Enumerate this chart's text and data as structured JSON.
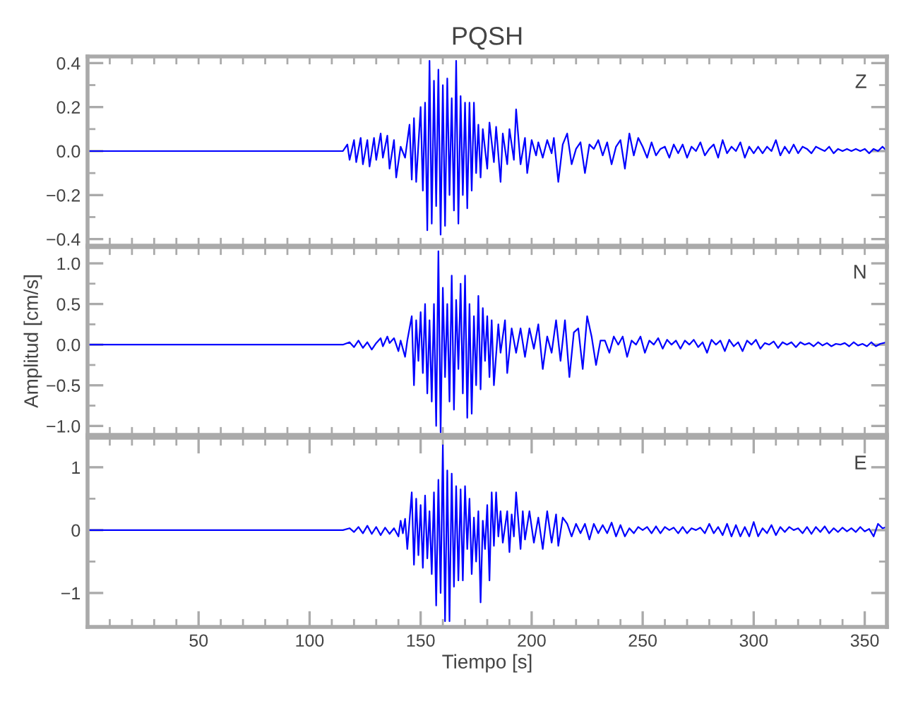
{
  "chart_data": [
    {
      "type": "line",
      "title": "PQSH",
      "annotations": [
        "Z"
      ],
      "tick_labels": "y",
      "grid": false,
      "legend": false,
      "xlim": [
        0,
        360
      ],
      "xticks": [
        {
          "value": 10,
          "label": null
        },
        {
          "value": 20,
          "label": null
        },
        {
          "value": 30,
          "label": null
        },
        {
          "value": 40,
          "label": null
        },
        {
          "value": 50,
          "label": null
        },
        {
          "value": 60,
          "label": null
        },
        {
          "value": 70,
          "label": null
        },
        {
          "value": 80,
          "label": null
        },
        {
          "value": 90,
          "label": null
        },
        {
          "value": 100,
          "label": null
        },
        {
          "value": 110,
          "label": null
        },
        {
          "value": 120,
          "label": null
        },
        {
          "value": 130,
          "label": null
        },
        {
          "value": 140,
          "label": null
        },
        {
          "value": 150,
          "label": null
        },
        {
          "value": 160,
          "label": null
        },
        {
          "value": 170,
          "label": null
        },
        {
          "value": 180,
          "label": null
        },
        {
          "value": 190,
          "label": null
        },
        {
          "value": 200,
          "label": null
        },
        {
          "value": 210,
          "label": null
        },
        {
          "value": 220,
          "label": null
        },
        {
          "value": 230,
          "label": null
        },
        {
          "value": 240,
          "label": null
        },
        {
          "value": 250,
          "label": null
        },
        {
          "value": 260,
          "label": null
        },
        {
          "value": 270,
          "label": null
        },
        {
          "value": 280,
          "label": null
        },
        {
          "value": 290,
          "label": null
        },
        {
          "value": 300,
          "label": null
        },
        {
          "value": 310,
          "label": null
        },
        {
          "value": 320,
          "label": null
        },
        {
          "value": 330,
          "label": null
        },
        {
          "value": 340,
          "label": null
        },
        {
          "value": 350,
          "label": null
        }
      ],
      "ylim": [
        -0.43,
        0.43
      ],
      "yticks": [
        {
          "value": -0.4,
          "label": "−0.4"
        },
        {
          "value": -0.3,
          "label": null
        },
        {
          "value": -0.2,
          "label": "−0.2"
        },
        {
          "value": -0.1,
          "label": null
        },
        {
          "value": 0,
          "label": "0.0"
        },
        {
          "value": 0.1,
          "label": null
        },
        {
          "value": 0.2,
          "label": "0.2"
        },
        {
          "value": 0.3,
          "label": null
        },
        {
          "value": 0.4,
          "label": "0.4"
        }
      ],
      "x": [
        0,
        115,
        117,
        118,
        120,
        121,
        123,
        124,
        126,
        127,
        129,
        130,
        132,
        133,
        135,
        136,
        138,
        139,
        141,
        143,
        145,
        146,
        147,
        148,
        150,
        151,
        152,
        153,
        154,
        155,
        156,
        157,
        158,
        159,
        160,
        161,
        162,
        163,
        164,
        165,
        166,
        167,
        168,
        169,
        170,
        171,
        172,
        173,
        174,
        175,
        176,
        177,
        178,
        180,
        181,
        183,
        184,
        186,
        187,
        189,
        190,
        192,
        193,
        195,
        197,
        198,
        200,
        202,
        203,
        205,
        207,
        209,
        210,
        212,
        214,
        216,
        218,
        220,
        222,
        224,
        226,
        228,
        230,
        232,
        234,
        236,
        238,
        240,
        242,
        244,
        246,
        248,
        250,
        252,
        254,
        256,
        258,
        260,
        262,
        264,
        266,
        268,
        270,
        272,
        274,
        276,
        278,
        280,
        282,
        284,
        286,
        288,
        290,
        292,
        294,
        296,
        298,
        300,
        302,
        304,
        306,
        308,
        310,
        312,
        314,
        316,
        318,
        320,
        322,
        324,
        326,
        328,
        330,
        332,
        334,
        336,
        338,
        340,
        342,
        344,
        346,
        348,
        350,
        352,
        354,
        356,
        358,
        360
      ],
      "series": [
        {
          "color": "#0000ff",
          "values": [
            0,
            0,
            0.03,
            -0.04,
            0.05,
            -0.05,
            0.06,
            -0.06,
            0.05,
            -0.07,
            0.06,
            -0.04,
            0.08,
            -0.03,
            0.07,
            -0.08,
            0.05,
            -0.12,
            0.02,
            -0.03,
            0.12,
            -0.13,
            0.15,
            -0.14,
            0.2,
            -0.18,
            0.22,
            -0.36,
            0.41,
            -0.33,
            0.32,
            -0.25,
            0.37,
            -0.38,
            0.3,
            -0.34,
            0.33,
            -0.2,
            0.24,
            -0.27,
            0.41,
            -0.33,
            0.25,
            -0.2,
            0.22,
            -0.26,
            0.22,
            -0.18,
            0.22,
            -0.1,
            0.12,
            -0.12,
            0.1,
            -0.08,
            0.13,
            -0.05,
            0.11,
            -0.14,
            0.08,
            -0.06,
            0.1,
            -0.04,
            0.19,
            -0.06,
            0.06,
            -0.1,
            0.05,
            -0.02,
            0.04,
            -0.03,
            0.05,
            -0.01,
            0.06,
            -0.14,
            0.03,
            0.08,
            -0.06,
            0.01,
            0.04,
            -0.1,
            0.03,
            0.01,
            0.05,
            -0.02,
            0.04,
            -0.06,
            0.02,
            0.05,
            -0.08,
            0.08,
            -0.02,
            0.06,
            0.02,
            -0.03,
            0.04,
            -0.02,
            0.01,
            0.02,
            -0.03,
            0.03,
            -0.01,
            0.03,
            -0.03,
            0.02,
            0,
            0.04,
            -0.02,
            0.01,
            0.03,
            -0.03,
            0.05,
            -0.01,
            0.02,
            0,
            0.04,
            -0.03,
            0.02,
            -0.01,
            0.02,
            -0.01,
            0.02,
            0,
            0.05,
            -0.02,
            0.02,
            -0.01,
            0.03,
            -0.01,
            0.02,
            0.01,
            -0.01,
            0.02,
            0.01,
            0,
            0.02,
            -0.01,
            0.01,
            0,
            0.01,
            0,
            0.01,
            0,
            0.01,
            -0.01,
            0.01,
            0,
            0.02,
            0
          ]
        }
      ]
    },
    {
      "type": "line",
      "ylabel": "Amplitud [cm/s]",
      "annotations": [
        "N"
      ],
      "tick_labels": "y",
      "grid": false,
      "legend": false,
      "xlim": [
        0,
        360
      ],
      "xticks": [
        {
          "value": 10,
          "label": null
        },
        {
          "value": 20,
          "label": null
        },
        {
          "value": 30,
          "label": null
        },
        {
          "value": 40,
          "label": null
        },
        {
          "value": 50,
          "label": null
        },
        {
          "value": 60,
          "label": null
        },
        {
          "value": 70,
          "label": null
        },
        {
          "value": 80,
          "label": null
        },
        {
          "value": 90,
          "label": null
        },
        {
          "value": 100,
          "label": null
        },
        {
          "value": 110,
          "label": null
        },
        {
          "value": 120,
          "label": null
        },
        {
          "value": 130,
          "label": null
        },
        {
          "value": 140,
          "label": null
        },
        {
          "value": 150,
          "label": null
        },
        {
          "value": 160,
          "label": null
        },
        {
          "value": 170,
          "label": null
        },
        {
          "value": 180,
          "label": null
        },
        {
          "value": 190,
          "label": null
        },
        {
          "value": 200,
          "label": null
        },
        {
          "value": 210,
          "label": null
        },
        {
          "value": 220,
          "label": null
        },
        {
          "value": 230,
          "label": null
        },
        {
          "value": 240,
          "label": null
        },
        {
          "value": 250,
          "label": null
        },
        {
          "value": 260,
          "label": null
        },
        {
          "value": 270,
          "label": null
        },
        {
          "value": 280,
          "label": null
        },
        {
          "value": 290,
          "label": null
        },
        {
          "value": 300,
          "label": null
        },
        {
          "value": 310,
          "label": null
        },
        {
          "value": 320,
          "label": null
        },
        {
          "value": 330,
          "label": null
        },
        {
          "value": 340,
          "label": null
        },
        {
          "value": 350,
          "label": null
        }
      ],
      "ylim": [
        -1.11,
        1.2
      ],
      "yticks": [
        {
          "value": -1.0,
          "label": "−1.0"
        },
        {
          "value": -0.75,
          "label": null
        },
        {
          "value": -0.5,
          "label": "−0.5"
        },
        {
          "value": -0.25,
          "label": null
        },
        {
          "value": 0,
          "label": "0.0"
        },
        {
          "value": 0.25,
          "label": null
        },
        {
          "value": 0.5,
          "label": "0.5"
        },
        {
          "value": 0.75,
          "label": null
        },
        {
          "value": 1.0,
          "label": "1.0"
        }
      ],
      "x": [
        0,
        115,
        118,
        120,
        122,
        124,
        126,
        128,
        130,
        132,
        133,
        135,
        136,
        138,
        140,
        141,
        143,
        144,
        146,
        147,
        148,
        149,
        150,
        151,
        152,
        153,
        154,
        155,
        156,
        157,
        158,
        159,
        160,
        161,
        162,
        163,
        164,
        165,
        166,
        167,
        168,
        169,
        170,
        171,
        172,
        173,
        174,
        175,
        176,
        177,
        178,
        179,
        180,
        181,
        182,
        183,
        185,
        186,
        188,
        189,
        191,
        193,
        195,
        197,
        199,
        201,
        203,
        205,
        207,
        209,
        211,
        213,
        215,
        217,
        219,
        221,
        223,
        225,
        227,
        229,
        231,
        233,
        235,
        237,
        239,
        241,
        243,
        245,
        247,
        249,
        251,
        253,
        255,
        257,
        259,
        261,
        263,
        265,
        267,
        269,
        271,
        273,
        275,
        277,
        279,
        281,
        283,
        285,
        287,
        289,
        291,
        293,
        295,
        297,
        299,
        301,
        303,
        305,
        307,
        309,
        311,
        313,
        315,
        317,
        319,
        321,
        323,
        325,
        327,
        329,
        331,
        333,
        335,
        337,
        339,
        341,
        343,
        345,
        347,
        349,
        351,
        353,
        355,
        357,
        360
      ],
      "series": [
        {
          "color": "#0000ff",
          "values": [
            0,
            0,
            0.03,
            -0.03,
            0.05,
            -0.04,
            0.03,
            -0.06,
            0.02,
            0.08,
            -0.02,
            0.1,
            0.02,
            0.08,
            -0.08,
            0.05,
            -0.15,
            0.05,
            0.35,
            -0.5,
            0.3,
            -0.2,
            0.4,
            -0.35,
            0.5,
            -0.6,
            0.3,
            -0.7,
            0.5,
            -1.0,
            1.15,
            -1.08,
            0.7,
            -0.4,
            0.5,
            -0.7,
            0.85,
            -0.8,
            0.55,
            -0.3,
            0.75,
            -0.6,
            0.85,
            -0.9,
            0.5,
            -0.85,
            0.35,
            -0.5,
            0.6,
            -0.55,
            0.45,
            -0.2,
            0.35,
            -0.4,
            0.3,
            -0.5,
            0.25,
            -0.1,
            0.3,
            -0.35,
            0.2,
            -0.1,
            0.2,
            -0.15,
            0.2,
            -0.05,
            0.25,
            -0.3,
            0.1,
            -0.1,
            0.3,
            -0.2,
            0.3,
            -0.4,
            0.15,
            0.2,
            -0.3,
            0.35,
            0.1,
            -0.25,
            0.05,
            0.05,
            -0.1,
            0.1,
            0,
            0.1,
            -0.15,
            0.05,
            0,
            0.1,
            -0.1,
            0.05,
            0,
            0.08,
            -0.05,
            0.06,
            0,
            0.05,
            -0.05,
            0.05,
            0,
            0.06,
            -0.03,
            0.03,
            -0.1,
            0.06,
            0,
            0.05,
            -0.08,
            0.06,
            -0.02,
            0.03,
            -0.08,
            0.05,
            0,
            0.06,
            -0.05,
            0.02,
            0,
            0.04,
            -0.04,
            0.03,
            0,
            0.03,
            -0.03,
            0.03,
            0,
            0.02,
            -0.02,
            0.03,
            -0.01,
            0.02,
            -0.02,
            0.01,
            0,
            0.02,
            -0.02,
            0.03,
            -0.01,
            0.01,
            -0.02,
            0.03,
            -0.02,
            0.01,
            0.03
          ]
        }
      ]
    },
    {
      "type": "line",
      "xlabel": "Tiempo [s]",
      "annotations": [
        "E"
      ],
      "grid": false,
      "legend": false,
      "xlim": [
        0,
        360
      ],
      "xticks": [
        {
          "value": 10,
          "label": null
        },
        {
          "value": 20,
          "label": null
        },
        {
          "value": 30,
          "label": null
        },
        {
          "value": 40,
          "label": null
        },
        {
          "value": 50,
          "label": "50"
        },
        {
          "value": 60,
          "label": null
        },
        {
          "value": 70,
          "label": null
        },
        {
          "value": 80,
          "label": null
        },
        {
          "value": 90,
          "label": null
        },
        {
          "value": 100,
          "label": "100"
        },
        {
          "value": 110,
          "label": null
        },
        {
          "value": 120,
          "label": null
        },
        {
          "value": 130,
          "label": null
        },
        {
          "value": 140,
          "label": null
        },
        {
          "value": 150,
          "label": "150"
        },
        {
          "value": 160,
          "label": null
        },
        {
          "value": 170,
          "label": null
        },
        {
          "value": 180,
          "label": null
        },
        {
          "value": 190,
          "label": null
        },
        {
          "value": 200,
          "label": "200"
        },
        {
          "value": 210,
          "label": null
        },
        {
          "value": 220,
          "label": null
        },
        {
          "value": 230,
          "label": null
        },
        {
          "value": 240,
          "label": null
        },
        {
          "value": 250,
          "label": "250"
        },
        {
          "value": 260,
          "label": null
        },
        {
          "value": 270,
          "label": null
        },
        {
          "value": 280,
          "label": null
        },
        {
          "value": 290,
          "label": null
        },
        {
          "value": 300,
          "label": "300"
        },
        {
          "value": 310,
          "label": null
        },
        {
          "value": 320,
          "label": null
        },
        {
          "value": 330,
          "label": null
        },
        {
          "value": 340,
          "label": null
        },
        {
          "value": 350,
          "label": "350"
        }
      ],
      "ylim": [
        -1.54,
        1.47
      ],
      "yticks": [
        {
          "value": -1,
          "label": "−1"
        },
        {
          "value": -0.5,
          "label": null
        },
        {
          "value": 0,
          "label": "0"
        },
        {
          "value": 0.5,
          "label": null
        },
        {
          "value": 1,
          "label": "1"
        }
      ],
      "x": [
        0,
        115,
        118,
        120,
        122,
        124,
        126,
        128,
        130,
        132,
        134,
        136,
        138,
        140,
        141,
        142,
        143,
        144,
        146,
        147,
        148,
        149,
        150,
        151,
        152,
        153,
        154,
        155,
        156,
        157,
        158,
        159,
        160,
        161,
        162,
        163,
        164,
        165,
        166,
        167,
        168,
        169,
        170,
        171,
        172,
        173,
        174,
        175,
        176,
        177,
        178,
        179,
        180,
        181,
        182,
        183,
        184,
        185,
        186,
        187,
        189,
        190,
        191,
        192,
        193,
        195,
        196,
        197,
        199,
        201,
        203,
        205,
        207,
        209,
        211,
        212,
        214,
        216,
        218,
        220,
        222,
        224,
        226,
        228,
        230,
        232,
        234,
        236,
        238,
        240,
        242,
        244,
        246,
        248,
        250,
        252,
        254,
        256,
        258,
        260,
        262,
        264,
        266,
        268,
        270,
        272,
        274,
        276,
        278,
        280,
        282,
        284,
        286,
        288,
        290,
        292,
        294,
        296,
        298,
        300,
        302,
        304,
        306,
        308,
        310,
        312,
        314,
        316,
        318,
        320,
        322,
        324,
        326,
        328,
        330,
        332,
        334,
        336,
        338,
        340,
        342,
        344,
        346,
        348,
        350,
        352,
        354,
        356,
        358,
        360
      ],
      "series": [
        {
          "color": "#0000ff",
          "values": [
            0,
            0,
            0.03,
            -0.03,
            0.05,
            -0.05,
            0.07,
            -0.06,
            0.05,
            -0.08,
            0.04,
            -0.06,
            0.03,
            -0.1,
            0.15,
            -0.05,
            0.18,
            -0.3,
            0.6,
            -0.55,
            0.5,
            -0.4,
            0.4,
            -0.6,
            0.55,
            -0.45,
            0.3,
            -0.7,
            0.6,
            -1.2,
            0.8,
            -1.0,
            1.35,
            -1.45,
            0.95,
            -1.45,
            0.9,
            -0.9,
            0.7,
            -0.8,
            0.65,
            -0.8,
            0.7,
            -0.3,
            0.5,
            -0.7,
            0.2,
            -0.5,
            0.3,
            -1.15,
            0.15,
            -0.3,
            0.4,
            -0.8,
            0.6,
            -0.25,
            0.6,
            -0.1,
            0.3,
            -0.2,
            0.3,
            -0.35,
            0.25,
            -0.1,
            0.6,
            -0.3,
            0.3,
            -0.15,
            0.3,
            -0.2,
            0.2,
            -0.3,
            0.3,
            -0.2,
            0.25,
            -0.25,
            0.2,
            0.1,
            -0.1,
            0.1,
            -0.05,
            0.1,
            -0.15,
            0.1,
            -0.05,
            0.08,
            -0.05,
            0.12,
            -0.1,
            0.08,
            -0.1,
            0.03,
            -0.05,
            0.05,
            0,
            0.05,
            -0.05,
            0.06,
            -0.05,
            0.05,
            0,
            0.04,
            -0.05,
            0.05,
            -0.05,
            0.03,
            0,
            0.04,
            -0.05,
            0.1,
            -0.05,
            0.05,
            -0.08,
            0.1,
            -0.1,
            0.08,
            -0.1,
            0.05,
            -0.1,
            0.13,
            -0.1,
            0.03,
            -0.05,
            0.08,
            -0.08,
            0.05,
            -0.03,
            0.05,
            0,
            0.03,
            -0.05,
            0.05,
            -0.06,
            0.05,
            -0.03,
            0.06,
            -0.05,
            0.03,
            -0.03,
            0.04,
            -0.02,
            0.03,
            -0.03,
            0.05,
            -0.02,
            0.02,
            -0.1,
            0.1,
            0.03,
            0.05
          ]
        }
      ]
    }
  ]
}
